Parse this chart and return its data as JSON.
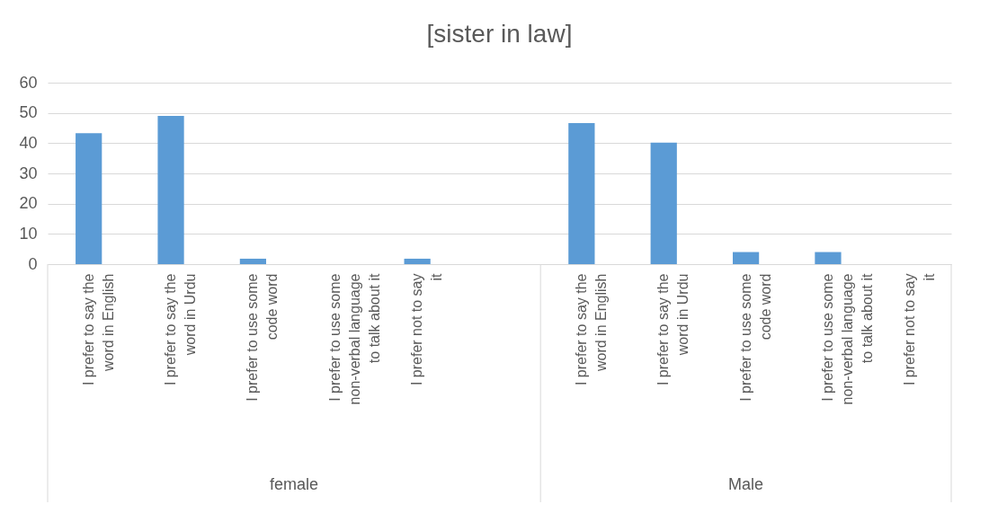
{
  "chart_data": {
    "type": "bar",
    "title": "[sister in law]",
    "categories": [
      "I prefer to say the word in English",
      "I prefer to say the word in Urdu",
      "I prefer to use some code word",
      "I prefer to use some non-verbal language to talk about it",
      "I prefer not to say it",
      null,
      "I prefer to say the word in English",
      "I prefer to say the word in Urdu",
      "I prefer to use some code word",
      "I prefer to use some non-verbal language to talk about it",
      "I prefer not to say it"
    ],
    "values": [
      43.3,
      49.0,
      1.8,
      0,
      1.8,
      null,
      46.6,
      40.2,
      4.0,
      4.0,
      0
    ],
    "color": "#5b9bd5",
    "annotations": [
      "female",
      "Male"
    ],
    "ylim": [
      0,
      60
    ],
    "yticks": [
      0,
      10,
      20,
      30,
      40,
      50,
      60
    ],
    "grid": "y"
  }
}
